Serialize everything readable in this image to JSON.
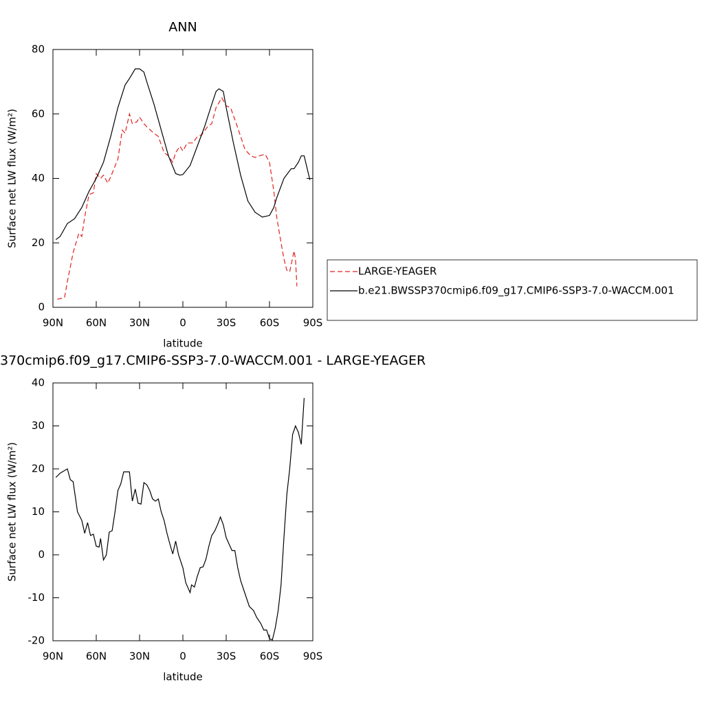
{
  "chart_data": [
    {
      "type": "line",
      "title": "ANN",
      "xlabel": "latitude",
      "ylabel": "Surface net LW flux (W/m²)",
      "xlim": [
        90,
        -90
      ],
      "xticks": [
        {
          "value": 90,
          "label": "90N"
        },
        {
          "value": 60,
          "label": "60N"
        },
        {
          "value": 30,
          "label": "30N"
        },
        0,
        {
          "value": -30,
          "label": "30S"
        },
        {
          "value": -60,
          "label": "60S"
        },
        {
          "value": -90,
          "label": "90S"
        }
      ],
      "ylim": [
        0,
        80
      ],
      "yticks": [
        0,
        20,
        40,
        60,
        80
      ],
      "legend_position": "right",
      "series": [
        {
          "name": "LARGE-YEAGER",
          "color": "#e0201e",
          "dash": true,
          "x": [
            87,
            82,
            80,
            76,
            72,
            70,
            68,
            65,
            62,
            60,
            57,
            55,
            52,
            50,
            45,
            42,
            40,
            37,
            35,
            32,
            30,
            27,
            25,
            20,
            17,
            13,
            10,
            7,
            5,
            2,
            0,
            -3,
            -7,
            -10,
            -13,
            -17,
            -20,
            -23,
            -27,
            -30,
            -33,
            -37,
            -40,
            -43,
            -47,
            -50,
            -53,
            -57,
            -60,
            -63,
            -65,
            -68,
            -70,
            -72,
            -74,
            -77,
            -78,
            -79
          ],
          "values": [
            2.5,
            3,
            8,
            17,
            23,
            22,
            28,
            35,
            35.5,
            41.5,
            40,
            41,
            38.5,
            40.5,
            46,
            55,
            54,
            60,
            57,
            57.5,
            59,
            57,
            56,
            54,
            53,
            48,
            47,
            45,
            48,
            50,
            48.5,
            51,
            51,
            53,
            53.5,
            56,
            57,
            62,
            65,
            62.5,
            62,
            57,
            53,
            49,
            47,
            46.5,
            47,
            47.5,
            45,
            36,
            28,
            20,
            15,
            11.5,
            11,
            17.5,
            15,
            6.5
          ]
        },
        {
          "name": "b.e21.BWSSP370cmip6.f09_g17.CMIP6-SSP3-7.0-WACCM.001",
          "color": "#000000",
          "dash": false,
          "x": [
            88,
            85,
            80,
            75,
            70,
            65,
            60,
            55,
            50,
            45,
            40,
            37,
            33,
            30,
            27,
            25,
            20,
            15,
            10,
            5,
            2,
            0,
            -5,
            -10,
            -15,
            -20,
            -23,
            -25,
            -28,
            -30,
            -35,
            -40,
            -45,
            -50,
            -55,
            -60,
            -63,
            -65,
            -70,
            -75,
            -77,
            -80,
            -82,
            -84,
            -88
          ],
          "values": [
            21,
            22,
            26,
            27.5,
            31,
            36,
            40,
            45,
            53,
            62,
            69,
            71,
            74,
            74,
            73,
            70,
            63,
            55,
            47,
            41.5,
            41,
            41.2,
            44,
            50,
            56,
            63,
            67,
            67.8,
            67,
            62,
            51,
            41,
            33,
            29.5,
            28,
            28.5,
            31,
            34,
            40,
            43,
            43,
            45,
            47,
            47,
            39.5
          ]
        }
      ]
    },
    {
      "type": "line",
      "title": "370cmip6.f09_g17.CMIP6-SSP3-7.0-WACCM.001 - LARGE-YEAGER",
      "xlabel": "latitude",
      "ylabel": "Surface net LW flux (W/m²)",
      "xlim": [
        90,
        -90
      ],
      "xticks": [
        {
          "value": 90,
          "label": "90N"
        },
        {
          "value": 60,
          "label": "60N"
        },
        {
          "value": 30,
          "label": "30N"
        },
        0,
        {
          "value": -30,
          "label": "30S"
        },
        {
          "value": -60,
          "label": "60S"
        },
        {
          "value": -90,
          "label": "90S"
        }
      ],
      "ylim": [
        -20,
        40
      ],
      "yticks": [
        -20,
        -10,
        0,
        10,
        20,
        30,
        40
      ],
      "series": [
        {
          "color": "#000000",
          "dash": false,
          "x": [
            88,
            85,
            80,
            78,
            76,
            73,
            70,
            68,
            66,
            64,
            62,
            60,
            58,
            57,
            55,
            53,
            51,
            49,
            47,
            45,
            43,
            41,
            37,
            35,
            33,
            31,
            29,
            27,
            25,
            23,
            21,
            19,
            17,
            15,
            13,
            11,
            9,
            7,
            5,
            3,
            0,
            -2,
            -5,
            -6,
            -8,
            -10,
            -12,
            -14,
            -16,
            -18,
            -20,
            -22,
            -24,
            -26,
            -28,
            -30,
            -32,
            -34,
            -36,
            -38,
            -40,
            -43,
            -46,
            -49,
            -51,
            -54,
            -56,
            -58,
            -60,
            -62,
            -64,
            -66,
            -68,
            -70,
            -72,
            -74,
            -76,
            -78,
            -80,
            -82,
            -84
          ],
          "values": [
            18,
            19,
            20,
            17.5,
            17,
            10,
            8,
            5,
            7.5,
            4.5,
            4.8,
            2,
            1.8,
            3.8,
            -1.2,
            0,
            5.3,
            5.6,
            10,
            15,
            16.5,
            19.3,
            19.3,
            12.5,
            15.3,
            12,
            11.8,
            16.8,
            16.3,
            15,
            13,
            12.5,
            13,
            10,
            8,
            5,
            2.5,
            0.2,
            3.2,
            0,
            -3,
            -6.5,
            -8.8,
            -7,
            -7.5,
            -5,
            -3,
            -2.8,
            -1,
            2,
            4.5,
            5.5,
            7,
            8.8,
            7,
            4,
            2.5,
            1,
            1,
            -3,
            -6,
            -9,
            -12,
            -13,
            -14.5,
            -16,
            -17.5,
            -17.5,
            -19.5,
            -19.8,
            -17,
            -13,
            -7,
            4,
            14,
            20,
            28,
            30,
            28.5,
            25.7,
            36.5
          ]
        }
      ]
    }
  ]
}
